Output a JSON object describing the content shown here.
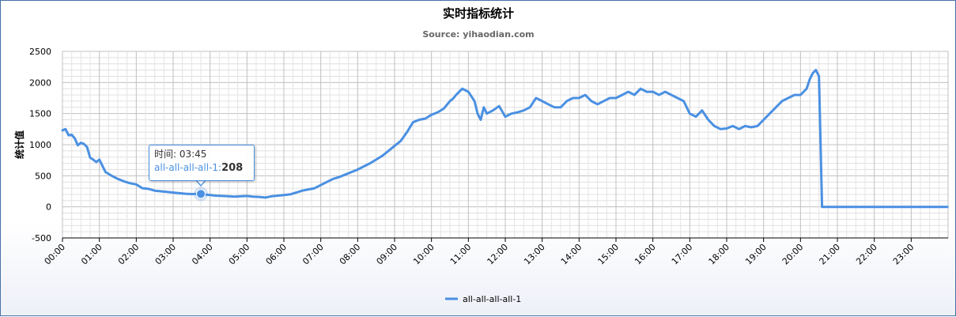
{
  "chart_data": {
    "type": "line",
    "title": "实时指标统计",
    "subtitle": "Source: yihaodian.com",
    "ylabel": "统计值",
    "ylim": [
      -500,
      2500
    ],
    "yticks": [
      -500,
      0,
      500,
      1000,
      1500,
      2000,
      2500
    ],
    "xlim": [
      0,
      24
    ],
    "xtick_labels": [
      "00:00",
      "01:00",
      "02:00",
      "03:00",
      "04:00",
      "05:00",
      "06:00",
      "07:00",
      "08:00",
      "09:00",
      "10:00",
      "11:00",
      "12:00",
      "13:00",
      "14:00",
      "15:00",
      "16:00",
      "17:00",
      "18:00",
      "19:00",
      "20:00",
      "21:00",
      "22:00",
      "23:00"
    ],
    "grid": true,
    "legend": "bottom-center",
    "series": [
      {
        "name": "all-all-all-all-1",
        "color": "#4a90e2",
        "x": [
          "00:00",
          "00:05",
          "00:10",
          "00:15",
          "00:20",
          "00:25",
          "00:30",
          "00:35",
          "00:40",
          "00:45",
          "00:50",
          "00:55",
          "01:00",
          "01:10",
          "01:20",
          "01:30",
          "01:40",
          "01:50",
          "02:00",
          "02:10",
          "02:20",
          "02:30",
          "02:40",
          "02:50",
          "03:00",
          "03:10",
          "03:20",
          "03:30",
          "03:40",
          "03:45",
          "03:50",
          "04:00",
          "04:10",
          "04:20",
          "04:30",
          "04:40",
          "04:50",
          "05:00",
          "05:10",
          "05:20",
          "05:30",
          "05:40",
          "05:50",
          "06:00",
          "06:10",
          "06:20",
          "06:30",
          "06:40",
          "06:50",
          "07:00",
          "07:10",
          "07:20",
          "07:30",
          "07:40",
          "07:50",
          "08:00",
          "08:10",
          "08:20",
          "08:30",
          "08:40",
          "08:50",
          "09:00",
          "09:10",
          "09:20",
          "09:30",
          "09:40",
          "09:50",
          "10:00",
          "10:10",
          "10:20",
          "10:30",
          "10:35",
          "10:40",
          "10:50",
          "11:00",
          "11:10",
          "11:15",
          "11:20",
          "11:25",
          "11:30",
          "11:40",
          "11:50",
          "12:00",
          "12:10",
          "12:20",
          "12:30",
          "12:40",
          "12:50",
          "13:00",
          "13:10",
          "13:20",
          "13:30",
          "13:40",
          "13:50",
          "14:00",
          "14:10",
          "14:20",
          "14:30",
          "14:40",
          "14:50",
          "15:00",
          "15:10",
          "15:20",
          "15:30",
          "15:40",
          "15:50",
          "16:00",
          "16:10",
          "16:20",
          "16:30",
          "16:40",
          "16:50",
          "17:00",
          "17:10",
          "17:20",
          "17:30",
          "17:40",
          "17:50",
          "18:00",
          "18:10",
          "18:20",
          "18:30",
          "18:40",
          "18:50",
          "19:00",
          "19:10",
          "19:20",
          "19:30",
          "19:40",
          "19:50",
          "20:00",
          "20:10",
          "20:15",
          "20:20",
          "20:25",
          "20:30",
          "20:35",
          "21:00",
          "22:00",
          "23:00",
          "23:59"
        ],
        "y": [
          1230,
          1250,
          1150,
          1160,
          1100,
          990,
          1030,
          1010,
          960,
          790,
          760,
          720,
          760,
          560,
          500,
          450,
          410,
          380,
          360,
          300,
          290,
          260,
          250,
          240,
          230,
          220,
          210,
          205,
          208,
          208,
          200,
          190,
          180,
          175,
          170,
          165,
          170,
          175,
          165,
          160,
          150,
          170,
          180,
          190,
          200,
          230,
          260,
          280,
          300,
          350,
          400,
          450,
          480,
          520,
          560,
          600,
          650,
          700,
          760,
          820,
          900,
          980,
          1060,
          1200,
          1360,
          1400,
          1420,
          1480,
          1520,
          1580,
          1700,
          1740,
          1800,
          1900,
          1850,
          1700,
          1500,
          1400,
          1600,
          1500,
          1550,
          1620,
          1450,
          1500,
          1520,
          1550,
          1600,
          1750,
          1700,
          1650,
          1600,
          1600,
          1700,
          1750,
          1750,
          1800,
          1700,
          1650,
          1700,
          1750,
          1750,
          1800,
          1850,
          1800,
          1900,
          1850,
          1850,
          1800,
          1850,
          1800,
          1750,
          1700,
          1500,
          1450,
          1550,
          1400,
          1300,
          1250,
          1260,
          1300,
          1250,
          1300,
          1280,
          1300,
          1400,
          1500,
          1600,
          1700,
          1750,
          1800,
          1800,
          1900,
          2050,
          2150,
          2200,
          2100,
          0,
          0,
          0,
          0,
          0
        ]
      }
    ],
    "tooltip": {
      "time_label": "时间: 03:45",
      "series_label": "all-all-all-all-1:",
      "value": "208"
    }
  }
}
